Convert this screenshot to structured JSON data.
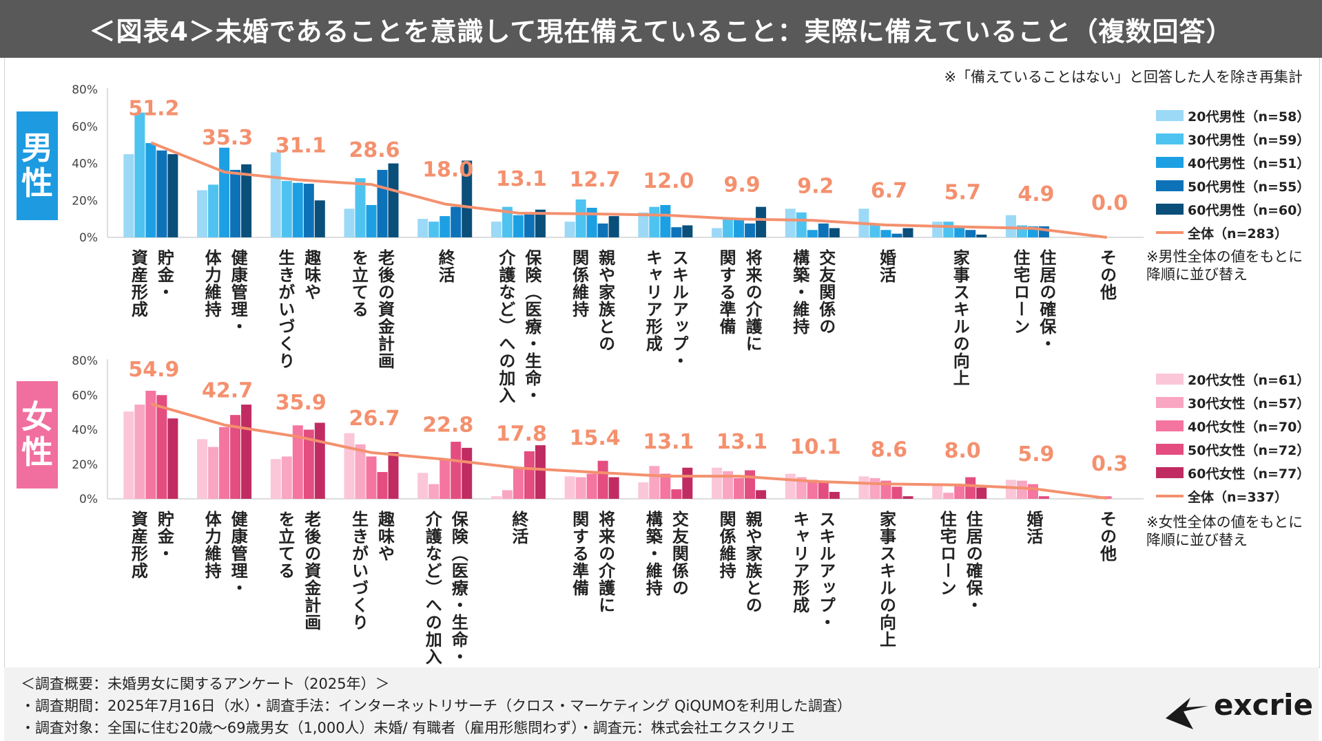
{
  "header": {
    "title": "＜図表4＞未婚であることを意識して現在備えていること：実際に備えていること（複数回答）"
  },
  "note_top": "※「備えていることはない」と回答した人を除き再集計",
  "badges": {
    "male": [
      "男",
      "性"
    ],
    "female": [
      "女",
      "性"
    ]
  },
  "colors": {
    "male": [
      "#9bd9f7",
      "#4fc3f0",
      "#1da0e3",
      "#0e72b8",
      "#0a4f7a"
    ],
    "female": [
      "#fbc6d8",
      "#f9a6c2",
      "#f4759f",
      "#e34d80",
      "#c02c62"
    ],
    "total_line": "#f4906e",
    "total_label": "#f4906e"
  },
  "chart_data": [
    {
      "type": "bar",
      "name": "male",
      "ylim": [
        0,
        80
      ],
      "yticks": [
        "0%",
        "20%",
        "40%",
        "60%",
        "80%"
      ],
      "categories": [
        [
          "資産形成",
          "貯金・"
        ],
        [
          "体力維持",
          "健康管理・"
        ],
        [
          "生きがいづくり",
          "趣味や"
        ],
        [
          "を立てる",
          "老後の資金計画"
        ],
        [
          "終活"
        ],
        [
          "介護など）への加入",
          "保険（医療・生命・"
        ],
        [
          "関係維持",
          "親や家族との"
        ],
        [
          "キャリア形成",
          "スキルアップ・"
        ],
        [
          "関する準備",
          "将来の介護に"
        ],
        [
          "構築・維持",
          "交友関係の"
        ],
        [
          "婚活"
        ],
        [
          "家事スキルの向上"
        ],
        [
          "住宅ローン",
          "住居の確保・"
        ],
        [
          "その他"
        ]
      ],
      "series": [
        {
          "name": "20代男性（n=58）",
          "values": [
            45,
            25.5,
            46,
            15.5,
            10,
            8.5,
            8.5,
            13.5,
            5,
            15.5,
            15.5,
            8.5,
            12,
            0
          ]
        },
        {
          "name": "30代男性（n=59）",
          "values": [
            67.5,
            28.5,
            30.5,
            32,
            8.5,
            16.5,
            20.5,
            16.5,
            10,
            13.5,
            7,
            8.5,
            6.5,
            0
          ]
        },
        {
          "name": "40代男性（n=51）",
          "values": [
            51,
            48.5,
            29.5,
            17.5,
            11.5,
            12,
            16,
            17.5,
            9.5,
            4,
            4,
            6,
            6,
            0
          ]
        },
        {
          "name": "50代男性（n=55）",
          "values": [
            47,
            36.5,
            29,
            36.5,
            16.5,
            13,
            7.5,
            5.5,
            7.5,
            7.5,
            2,
            4,
            6,
            0
          ]
        },
        {
          "name": "60代男性（n=60）",
          "values": [
            45,
            39.5,
            20,
            40,
            41.5,
            15,
            11.5,
            6.5,
            16.5,
            5,
            5,
            1.5,
            0,
            0
          ]
        }
      ],
      "total": {
        "name": "全体（n=283）",
        "values": [
          51.2,
          35.3,
          31.1,
          28.6,
          18.0,
          13.1,
          12.7,
          12.0,
          9.9,
          9.2,
          6.7,
          5.7,
          4.9,
          0.0
        ],
        "labels": [
          "51.2",
          "35.3",
          "31.1",
          "28.6",
          "18.0",
          "13.1",
          "12.7",
          "12.0",
          "9.9",
          "9.2",
          "6.7",
          "5.7",
          "4.9",
          "0.0"
        ]
      },
      "sort_note": [
        "※男性全体の値をもとに",
        "降順に並び替え"
      ]
    },
    {
      "type": "bar",
      "name": "female",
      "ylim": [
        0,
        80
      ],
      "yticks": [
        "0%",
        "20%",
        "40%",
        "60%",
        "80%"
      ],
      "categories": [
        [
          "資産形成",
          "貯金・"
        ],
        [
          "体力維持",
          "健康管理・"
        ],
        [
          "を立てる",
          "老後の資金計画"
        ],
        [
          "生きがいづくり",
          "趣味や"
        ],
        [
          "介護など）への加入",
          "保険（医療・生命・"
        ],
        [
          "終活"
        ],
        [
          "関する準備",
          "将来の介護に"
        ],
        [
          "構築・維持",
          "交友関係の"
        ],
        [
          "関係維持",
          "親や家族との"
        ],
        [
          "キャリア形成",
          "スキルアップ・"
        ],
        [
          "家事スキルの向上"
        ],
        [
          "住宅ローン",
          "住居の確保・"
        ],
        [
          "婚活"
        ],
        [
          "その他"
        ]
      ],
      "series": [
        {
          "name": "20代女性（n=61）",
          "values": [
            50.5,
            34.5,
            23,
            38,
            15,
            1.5,
            13,
            9.5,
            18,
            14.5,
            13,
            8,
            11,
            0
          ]
        },
        {
          "name": "30代女性（n=57）",
          "values": [
            54.5,
            30,
            24.5,
            31.5,
            8.5,
            5,
            12.5,
            19,
            16,
            12.5,
            12,
            3.5,
            10.5,
            0
          ]
        },
        {
          "name": "40代女性（n=70）",
          "values": [
            62.5,
            41.5,
            42.5,
            24.5,
            23,
            17.5,
            14.5,
            14.5,
            12,
            11,
            10.5,
            8.5,
            8.5,
            1.5
          ]
        },
        {
          "name": "50代女性（n=72）",
          "values": [
            60,
            48.5,
            40,
            15.5,
            33,
            27.5,
            22,
            5.5,
            16.5,
            9.5,
            7,
            12.5,
            1.5,
            0
          ]
        },
        {
          "name": "60代女性（n=77）",
          "values": [
            46.5,
            54.5,
            44,
            27,
            29.5,
            31,
            12.5,
            18,
            5,
            4,
            1.5,
            6.5,
            0,
            0
          ]
        }
      ],
      "total": {
        "name": "全体（n=337）",
        "values": [
          54.9,
          42.7,
          35.9,
          26.7,
          22.8,
          17.8,
          15.4,
          13.1,
          13.1,
          10.1,
          8.6,
          8.0,
          5.9,
          0.3
        ],
        "labels": [
          "54.9",
          "42.7",
          "35.9",
          "26.7",
          "22.8",
          "17.8",
          "15.4",
          "13.1",
          "13.1",
          "10.1",
          "8.6",
          "8.0",
          "5.9",
          "0.3"
        ]
      },
      "sort_note": [
        "※女性全体の値をもとに",
        "降順に並び替え"
      ]
    }
  ],
  "footer": {
    "line1": "＜調査概要：未婚男女に関するアンケート（2025年）＞",
    "line2": "・調査期間：2025年7月16日（水）・調査手法：インターネットリサーチ（クロス・マーケティング QiQUMOを利用した調査）",
    "line3": "・調査対象：全国に住む20歳～69歳男女（1,000人）未婚/ 有職者（雇用形態問わず）・調査元：株式会社エクスクリエ"
  },
  "logo": "excrie"
}
